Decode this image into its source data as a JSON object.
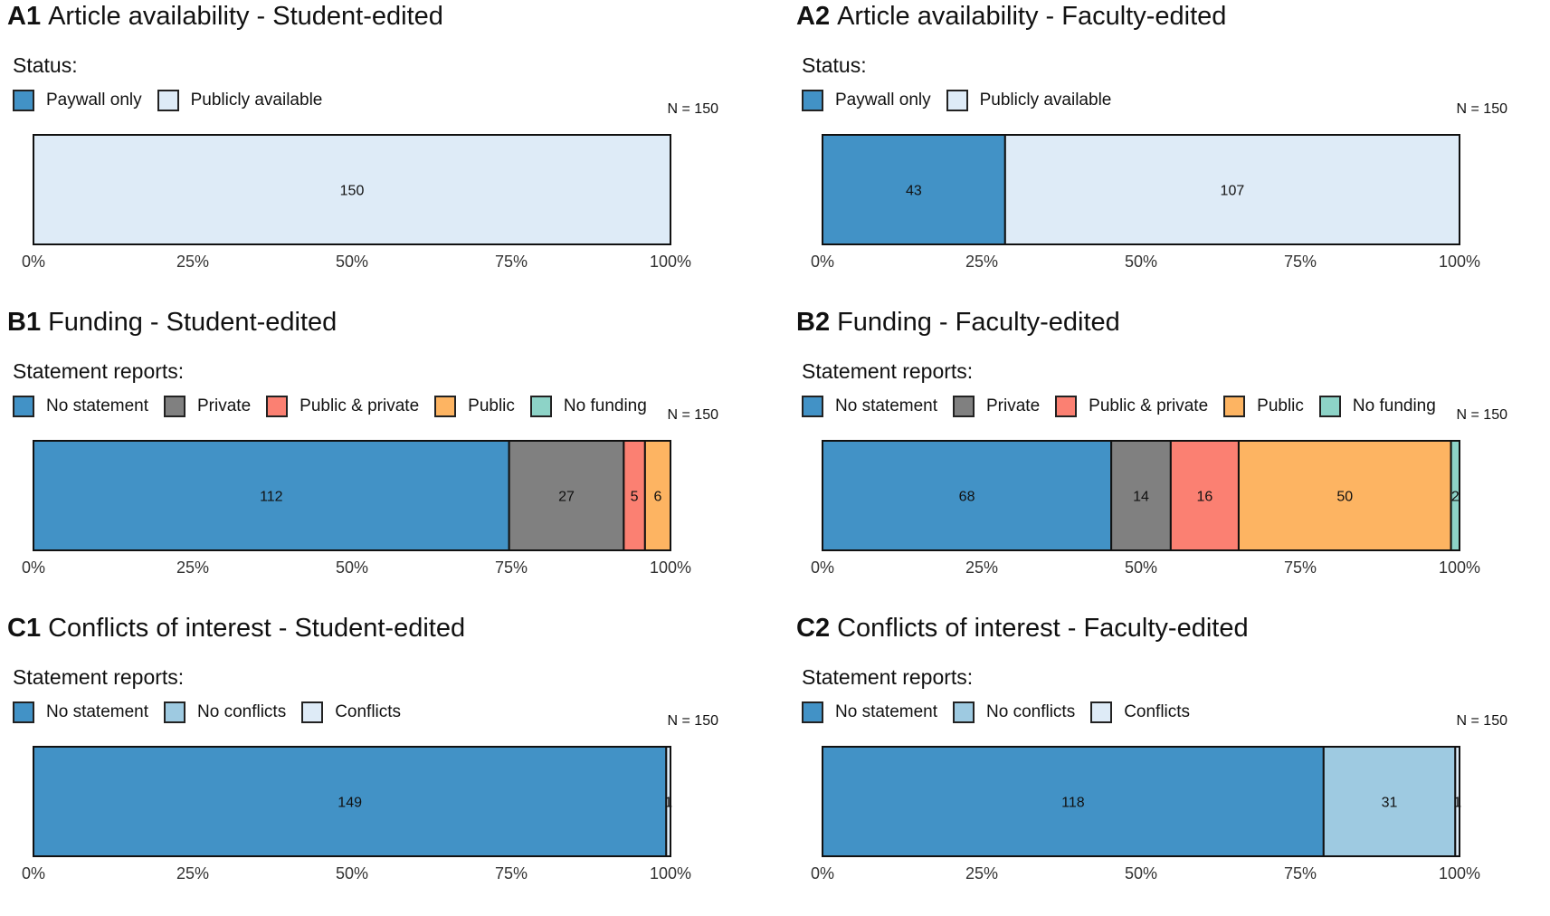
{
  "chart_data": [
    {
      "id": "A1",
      "type": "bar",
      "orientation": "horizontal-stacked-100",
      "title": "Article availability - Student-edited",
      "legend_title": "Status:",
      "n_label": "N = 150",
      "series": [
        {
          "name": "Paywall only",
          "value": 0,
          "color": "#4292c6"
        },
        {
          "name": "Publicly available",
          "value": 150,
          "color": "#deebf7"
        }
      ],
      "xlim": [
        0,
        100
      ],
      "xticks": [
        "0%",
        "25%",
        "50%",
        "75%",
        "100%"
      ]
    },
    {
      "id": "A2",
      "type": "bar",
      "orientation": "horizontal-stacked-100",
      "title": "Article availability - Faculty-edited",
      "legend_title": "Status:",
      "n_label": "N = 150",
      "series": [
        {
          "name": "Paywall only",
          "value": 43,
          "color": "#4292c6"
        },
        {
          "name": "Publicly available",
          "value": 107,
          "color": "#deebf7"
        }
      ],
      "xlim": [
        0,
        100
      ],
      "xticks": [
        "0%",
        "25%",
        "50%",
        "75%",
        "100%"
      ]
    },
    {
      "id": "B1",
      "type": "bar",
      "orientation": "horizontal-stacked-100",
      "title": "Funding - Student-edited",
      "legend_title": "Statement reports:",
      "n_label": "N = 150",
      "series": [
        {
          "name": "No statement",
          "value": 112,
          "color": "#4292c6"
        },
        {
          "name": "Private",
          "value": 27,
          "color": "#808080"
        },
        {
          "name": "Public & private",
          "value": 5,
          "color": "#fb8072"
        },
        {
          "name": "Public",
          "value": 6,
          "color": "#fdb462"
        },
        {
          "name": "No funding",
          "value": 0,
          "color": "#8dd3c7"
        }
      ],
      "xlim": [
        0,
        100
      ],
      "xticks": [
        "0%",
        "25%",
        "50%",
        "75%",
        "100%"
      ]
    },
    {
      "id": "B2",
      "type": "bar",
      "orientation": "horizontal-stacked-100",
      "title": "Funding - Faculty-edited",
      "legend_title": "Statement reports:",
      "n_label": "N = 150",
      "series": [
        {
          "name": "No statement",
          "value": 68,
          "color": "#4292c6"
        },
        {
          "name": "Private",
          "value": 14,
          "color": "#808080"
        },
        {
          "name": "Public & private",
          "value": 16,
          "color": "#fb8072"
        },
        {
          "name": "Public",
          "value": 50,
          "color": "#fdb462"
        },
        {
          "name": "No funding",
          "value": 2,
          "color": "#8dd3c7"
        }
      ],
      "xlim": [
        0,
        100
      ],
      "xticks": [
        "0%",
        "25%",
        "50%",
        "75%",
        "100%"
      ]
    },
    {
      "id": "C1",
      "type": "bar",
      "orientation": "horizontal-stacked-100",
      "title": "Conflicts of interest - Student-edited",
      "legend_title": "Statement reports:",
      "n_label": "N = 150",
      "series": [
        {
          "name": "No statement",
          "value": 149,
          "color": "#4292c6"
        },
        {
          "name": "No conflicts",
          "value": 0,
          "color": "#9ecae1"
        },
        {
          "name": "Conflicts",
          "value": 1,
          "color": "#deebf7"
        }
      ],
      "xlim": [
        0,
        100
      ],
      "xticks": [
        "0%",
        "25%",
        "50%",
        "75%",
        "100%"
      ]
    },
    {
      "id": "C2",
      "type": "bar",
      "orientation": "horizontal-stacked-100",
      "title": "Conflicts of interest - Faculty-edited",
      "legend_title": "Statement reports:",
      "n_label": "N = 150",
      "series": [
        {
          "name": "No statement",
          "value": 118,
          "color": "#4292c6"
        },
        {
          "name": "No conflicts",
          "value": 31,
          "color": "#9ecae1"
        },
        {
          "name": "Conflicts",
          "value": 1,
          "color": "#deebf7"
        }
      ],
      "xlim": [
        0,
        100
      ],
      "xticks": [
        "0%",
        "25%",
        "50%",
        "75%",
        "100%"
      ]
    }
  ]
}
